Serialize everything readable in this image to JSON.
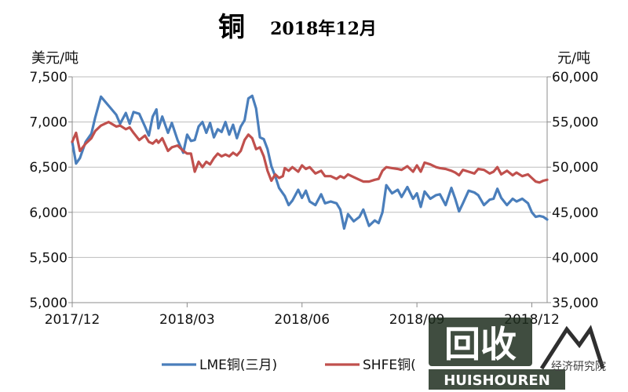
{
  "chart_data": {
    "type": "line",
    "title": "铜",
    "subtitle": "2018年12月",
    "ylabel_left": "美元/吨",
    "ylabel_right": "元/吨",
    "x_ticks": [
      "2017/12",
      "2018/03",
      "2018/06",
      "2018/09",
      "2018/12"
    ],
    "xlim": [
      "2017/12",
      "2018/12"
    ],
    "ylim_left": [
      5000,
      7500
    ],
    "ylim_right": [
      35000,
      60000
    ],
    "y_ticks_left": [
      "5,000",
      "5,500",
      "6,000",
      "6,500",
      "7,000",
      "7,500"
    ],
    "y_ticks_right": [
      "35,000",
      "40,000",
      "45,000",
      "50,000",
      "55,000",
      "60,000"
    ],
    "grid": "horizontal",
    "legend_position": "bottom",
    "series": [
      {
        "name": "LME铜(三月)",
        "axis": "left",
        "color": "#4a7ebb",
        "x": [
          0.0,
          0.1,
          0.2,
          0.35,
          0.5,
          0.6,
          0.75,
          0.95,
          1.15,
          1.25,
          1.4,
          1.5,
          1.6,
          1.75,
          1.9,
          2.0,
          2.1,
          2.2,
          2.25,
          2.35,
          2.5,
          2.6,
          2.75,
          2.9,
          3.0,
          3.1,
          3.2,
          3.3,
          3.4,
          3.5,
          3.6,
          3.7,
          3.8,
          3.9,
          4.0,
          4.1,
          4.2,
          4.3,
          4.4,
          4.5,
          4.6,
          4.7,
          4.8,
          4.9,
          5.0,
          5.1,
          5.2,
          5.3,
          5.4,
          5.5,
          5.55,
          5.65,
          5.75,
          5.9,
          6.0,
          6.1,
          6.2,
          6.35,
          6.5,
          6.6,
          6.75,
          6.9,
          7.0,
          7.1,
          7.2,
          7.35,
          7.5,
          7.6,
          7.75,
          7.9,
          8.0,
          8.1,
          8.2,
          8.35,
          8.5,
          8.6,
          8.75,
          8.9,
          9.0,
          9.1,
          9.2,
          9.35,
          9.5,
          9.6,
          9.75,
          9.9,
          10.0,
          10.1,
          10.2,
          10.35,
          10.5,
          10.6,
          10.75,
          10.9,
          11.0,
          11.1,
          11.2,
          11.35,
          11.5,
          11.6,
          11.75,
          11.9,
          12.0,
          12.1,
          12.2,
          12.3,
          12.4
        ],
        "values": [
          6780,
          6540,
          6600,
          6780,
          6870,
          7050,
          7280,
          7180,
          7080,
          6980,
          7100,
          6980,
          7110,
          7090,
          6950,
          6850,
          7060,
          7140,
          6930,
          7060,
          6880,
          6990,
          6800,
          6660,
          6860,
          6790,
          6800,
          6950,
          7000,
          6880,
          6990,
          6830,
          6920,
          6890,
          7000,
          6860,
          6970,
          6820,
          6950,
          7020,
          7260,
          7290,
          7150,
          6830,
          6810,
          6700,
          6510,
          6400,
          6270,
          6210,
          6180,
          6080,
          6130,
          6250,
          6160,
          6240,
          6120,
          6080,
          6200,
          6100,
          6120,
          6100,
          6030,
          5820,
          5980,
          5900,
          5950,
          6030,
          5850,
          5910,
          5880,
          6000,
          6300,
          6210,
          6250,
          6170,
          6280,
          6150,
          6210,
          6060,
          6230,
          6150,
          6190,
          6200,
          6080,
          6270,
          6150,
          6010,
          6100,
          6240,
          6220,
          6190,
          6080,
          6140,
          6150,
          6260,
          6160,
          6080,
          6150,
          6120,
          6150,
          6100,
          6000,
          5950,
          5960,
          5950,
          5920
        ]
      },
      {
        "name": "SHFE铜(",
        "axis": "right",
        "color": "#c0504d",
        "x": [
          0.0,
          0.1,
          0.2,
          0.35,
          0.5,
          0.6,
          0.75,
          0.95,
          1.15,
          1.25,
          1.4,
          1.5,
          1.6,
          1.75,
          1.9,
          2.0,
          2.1,
          2.2,
          2.25,
          2.35,
          2.5,
          2.6,
          2.75,
          2.9,
          3.0,
          3.1,
          3.2,
          3.3,
          3.4,
          3.5,
          3.6,
          3.7,
          3.8,
          3.9,
          4.0,
          4.1,
          4.2,
          4.3,
          4.4,
          4.5,
          4.6,
          4.7,
          4.8,
          4.9,
          5.0,
          5.1,
          5.2,
          5.3,
          5.4,
          5.5,
          5.55,
          5.65,
          5.75,
          5.9,
          6.0,
          6.1,
          6.2,
          6.35,
          6.5,
          6.6,
          6.75,
          6.9,
          7.0,
          7.1,
          7.2,
          7.35,
          7.5,
          7.6,
          7.75,
          7.9,
          8.0,
          8.1,
          8.2,
          8.35,
          8.5,
          8.6,
          8.75,
          8.9,
          9.0,
          9.1,
          9.2,
          9.35,
          9.5,
          9.6,
          9.75,
          9.9,
          10.0,
          10.1,
          10.2,
          10.35,
          10.5,
          10.6,
          10.75,
          10.9,
          11.0,
          11.1,
          11.2,
          11.35,
          11.5,
          11.6,
          11.75,
          11.9,
          12.0,
          12.1,
          12.2,
          12.3,
          12.4
        ],
        "values": [
          52800,
          53800,
          51800,
          52600,
          53200,
          54000,
          54600,
          55000,
          54500,
          54600,
          54200,
          54400,
          53800,
          53000,
          53500,
          52800,
          52600,
          53000,
          52700,
          53200,
          51800,
          52200,
          52400,
          51800,
          51500,
          51500,
          49500,
          50600,
          50000,
          50600,
          50300,
          51000,
          51500,
          51200,
          51400,
          51200,
          51600,
          51300,
          51800,
          53000,
          53600,
          53200,
          52000,
          52200,
          51200,
          49600,
          48500,
          49200,
          48800,
          49000,
          49900,
          49600,
          50000,
          49500,
          50200,
          49800,
          50000,
          49300,
          49600,
          49000,
          49000,
          48700,
          49000,
          48800,
          49200,
          48900,
          48600,
          48400,
          48400,
          48600,
          48700,
          49600,
          50000,
          49900,
          49800,
          49700,
          50100,
          49500,
          50200,
          49500,
          50500,
          50300,
          50000,
          49900,
          49800,
          49600,
          49400,
          49100,
          49700,
          49500,
          49300,
          49800,
          49700,
          49300,
          49500,
          50000,
          49200,
          49600,
          49100,
          49400,
          49000,
          49200,
          48800,
          48400,
          48300,
          48500,
          48600
        ]
      }
    ],
    "watermark": {
      "big": "回收",
      "latin": "HUISHOUREN",
      "small": "经济研究院"
    }
  }
}
